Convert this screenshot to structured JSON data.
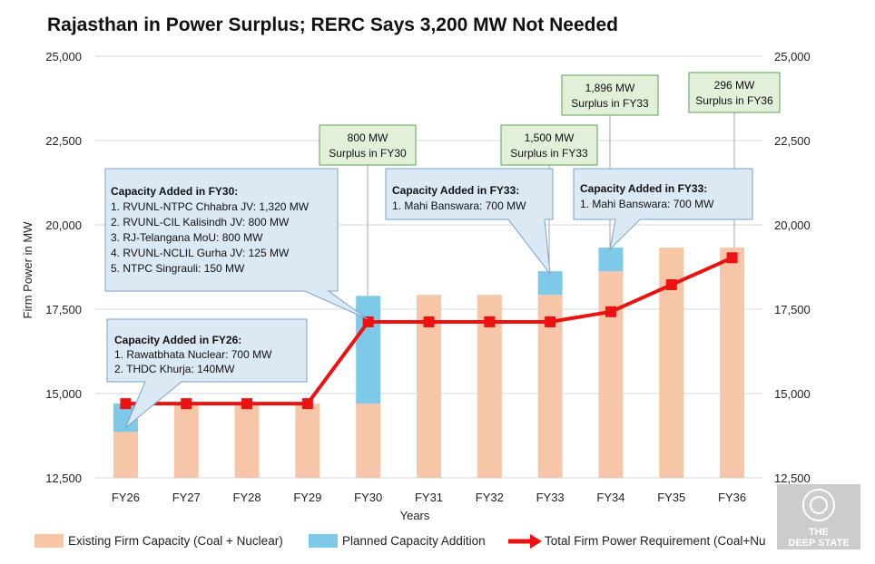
{
  "chart_data": {
    "type": "bar",
    "title": "Rajasthan in Power Surplus; RERC Says 3,200 MW Not Needed",
    "xlabel": "Years",
    "ylabel": "Firm Power in MW",
    "ylim": [
      12500,
      25000
    ],
    "yticks": [
      "12,500",
      "15,000",
      "17,500",
      "20,000",
      "22,500",
      "25,000"
    ],
    "ytick_values": [
      12500,
      15000,
      17500,
      20000,
      22500,
      25000
    ],
    "grid": true,
    "legend_position": "bottom",
    "categories": [
      "FY26",
      "FY27",
      "FY28",
      "FY29",
      "FY30",
      "FY31",
      "FY32",
      "FY33",
      "FY34",
      "FY35",
      "FY36"
    ],
    "series": [
      {
        "name": "Existing Firm Capacity (Coal + Nuclear)",
        "kind": "bar",
        "color": "#f7c6a9",
        "values": [
          13860,
          14700,
          14700,
          14700,
          14700,
          17925,
          17925,
          17925,
          18625,
          19325,
          19325
        ]
      },
      {
        "name": "Planned Capacity Addition",
        "kind": "bar",
        "color": "#7ec8e8",
        "values": [
          840,
          0,
          0,
          0,
          3195,
          0,
          0,
          700,
          700,
          0,
          0
        ]
      },
      {
        "name": "Total Firm Power Requirement (Coal+Nu",
        "kind": "line",
        "color": "#ee1111",
        "values": [
          14700,
          14700,
          14700,
          14700,
          17125,
          17125,
          17125,
          17125,
          17425,
          18225,
          19025
        ]
      }
    ],
    "callouts": [
      {
        "heading": "Capacity Added in FY26:",
        "lines": [
          "1. Rawatbhata Nuclear: 700 MW",
          "2. THDC Khurja: 140MW"
        ]
      },
      {
        "heading": "Capacity Added in FY30:",
        "lines": [
          "1. RVUNL-NTPC Chhabra JV: 1,320 MW",
          "2. RVUNL-CIL Kalisindh JV: 800 MW",
          "3. RJ-Telangana MoU: 800 MW",
          "4. RVUNL-NCLIL Gurha JV: 125 MW",
          "5. NTPC Singrauli: 150 MW"
        ]
      },
      {
        "heading": "Capacity Added in FY33:",
        "lines": [
          "1. Mahi Banswara: 700 MW"
        ]
      },
      {
        "heading": "Capacity Added in FY33:",
        "lines": [
          "1. Mahi Banswara: 700 MW"
        ]
      }
    ],
    "surplus_labels": [
      {
        "line1": "800 MW",
        "line2": "Surplus in FY30"
      },
      {
        "line1": "1,500 MW",
        "line2": "Surplus in FY33"
      },
      {
        "line1": "1,896 MW",
        "line2": "Surplus in FY33"
      },
      {
        "line1": "296 MW",
        "line2": "Surplus in FY36"
      }
    ]
  },
  "watermark": {
    "line1": "THE",
    "line2": "DEEP STATE"
  }
}
